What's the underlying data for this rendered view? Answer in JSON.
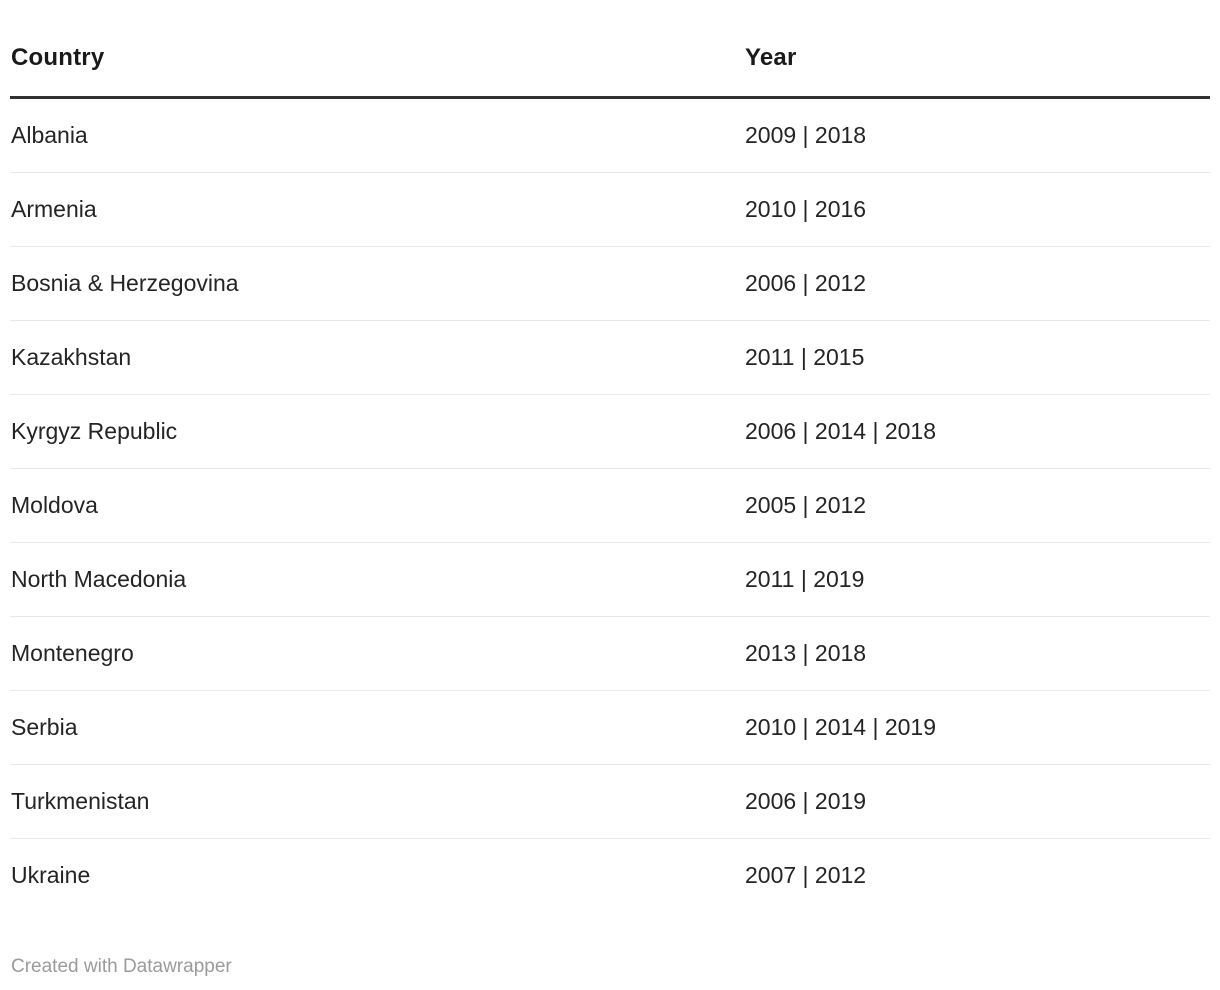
{
  "chart_data": {
    "type": "table",
    "columns": [
      "Country",
      "Year"
    ],
    "rows": [
      [
        "Albania",
        "2009 | 2018"
      ],
      [
        "Armenia",
        "2010 | 2016"
      ],
      [
        "Bosnia & Herzegovina",
        "2006 | 2012"
      ],
      [
        "Kazakhstan",
        "2011 | 2015"
      ],
      [
        "Kyrgyz Republic",
        "2006 | 2014 | 2018"
      ],
      [
        "Moldova",
        "2005 | 2012"
      ],
      [
        "North Macedonia",
        "2011 | 2019"
      ],
      [
        "Montenegro",
        "2013 | 2018"
      ],
      [
        "Serbia",
        "2010 | 2014 | 2019"
      ],
      [
        "Turkmenistan",
        "2006 | 2019"
      ],
      [
        "Ukraine",
        "2007 | 2012"
      ]
    ],
    "title": "",
    "legend_position": "none",
    "grid": "horizontal-row-separators"
  },
  "header": {
    "country_label": "Country",
    "year_label": "Year"
  },
  "footer": {
    "attribution": "Created with Datawrapper"
  },
  "colors": {
    "background": "#ffffff",
    "header_text": "#1a1a1a",
    "body_text": "#242424",
    "header_rule": "#323232",
    "row_separator": "#e8e8e8",
    "attribution_text": "#9b9b9b"
  }
}
